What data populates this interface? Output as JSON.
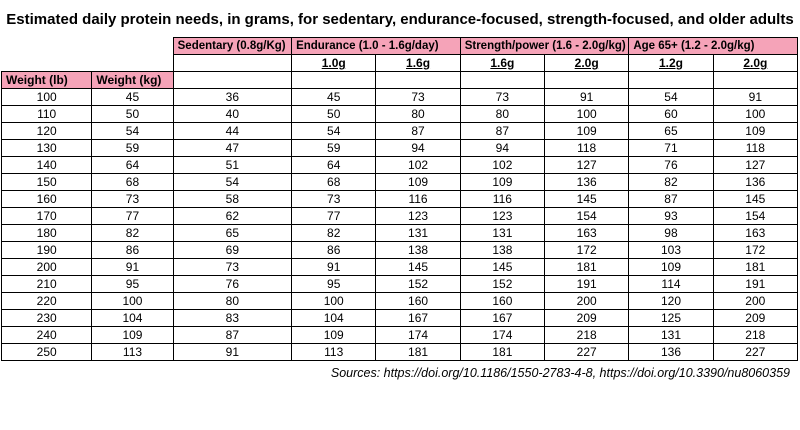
{
  "title": "Estimated daily protein needs, in grams, for sedentary, endurance-focused, strength-focused, and older adults",
  "footer": "Sources: https://doi.org/10.1186/1550-2783-4-8, https://doi.org/10.3390/nu8060359",
  "colors": {
    "header_pink": "#f5a3b8",
    "border": "#000000",
    "background": "#ffffff"
  },
  "chart_data": {
    "type": "table",
    "title": "Estimated daily protein needs, in grams, for sedentary, endurance-focused, strength-focused, and older adults",
    "group_headers": [
      {
        "label": "Sedentary (0.8g/Kg)",
        "span": 1
      },
      {
        "label": "Endurance (1.0 - 1.6g/day)",
        "span": 2
      },
      {
        "label": "Strength/power (1.6 - 2.0g/kg)",
        "span": 2
      },
      {
        "label": "Age 65+ (1.2 - 2.0g/kg)",
        "span": 2
      }
    ],
    "sub_headers": [
      "1.0g",
      "1.6g",
      "1.6g",
      "2.0g",
      "1.2g",
      "2.0g"
    ],
    "weight_headers": [
      "Weight (lb)",
      "Weight (kg)"
    ],
    "columns": [
      "Weight (lb)",
      "Weight (kg)",
      "Sedentary 0.8g",
      "Endurance 1.0g",
      "Endurance 1.6g",
      "Strength 1.6g",
      "Strength 2.0g",
      "Age 65+ 1.2g",
      "Age 65+ 2.0g"
    ],
    "rows": [
      [
        100,
        45,
        36,
        45,
        73,
        73,
        91,
        54,
        91
      ],
      [
        110,
        50,
        40,
        50,
        80,
        80,
        100,
        60,
        100
      ],
      [
        120,
        54,
        44,
        54,
        87,
        87,
        109,
        65,
        109
      ],
      [
        130,
        59,
        47,
        59,
        94,
        94,
        118,
        71,
        118
      ],
      [
        140,
        64,
        51,
        64,
        102,
        102,
        127,
        76,
        127
      ],
      [
        150,
        68,
        54,
        68,
        109,
        109,
        136,
        82,
        136
      ],
      [
        160,
        73,
        58,
        73,
        116,
        116,
        145,
        87,
        145
      ],
      [
        170,
        77,
        62,
        77,
        123,
        123,
        154,
        93,
        154
      ],
      [
        180,
        82,
        65,
        82,
        131,
        131,
        163,
        98,
        163
      ],
      [
        190,
        86,
        69,
        86,
        138,
        138,
        172,
        103,
        172
      ],
      [
        200,
        91,
        73,
        91,
        145,
        145,
        181,
        109,
        181
      ],
      [
        210,
        95,
        76,
        95,
        152,
        152,
        191,
        114,
        191
      ],
      [
        220,
        100,
        80,
        100,
        160,
        160,
        200,
        120,
        200
      ],
      [
        230,
        104,
        83,
        104,
        167,
        167,
        209,
        125,
        209
      ],
      [
        240,
        109,
        87,
        109,
        174,
        174,
        218,
        131,
        218
      ],
      [
        250,
        113,
        91,
        113,
        181,
        181,
        227,
        136,
        227
      ]
    ]
  }
}
